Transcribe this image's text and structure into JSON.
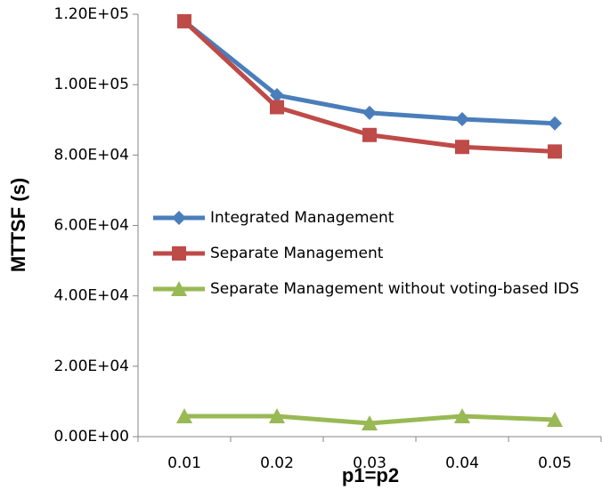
{
  "chart_data": {
    "type": "line",
    "x_label": "p1=p2",
    "y_label": "MTTSF (s)",
    "categories": [
      "0.01",
      "0.02",
      "0.03",
      "0.04",
      "0.05"
    ],
    "series": [
      {
        "name": "Integrated Management",
        "color": "#4a7ebb",
        "marker": "diamond",
        "values": [
          118000,
          97000,
          92000,
          90200,
          89000
        ]
      },
      {
        "name": "Separate Management",
        "color": "#be4b48",
        "marker": "square",
        "values": [
          118000,
          93600,
          85700,
          82300,
          81000
        ]
      },
      {
        "name": "Separate Management without voting-based IDS",
        "color": "#98b954",
        "marker": "triangle",
        "values": [
          5800,
          5800,
          3800,
          5800,
          4800
        ]
      }
    ],
    "ylim": [
      0,
      120000
    ],
    "yticks": [
      {
        "value": 0,
        "label": "0.00E+00"
      },
      {
        "value": 20000,
        "label": "2.00E+04"
      },
      {
        "value": 40000,
        "label": "4.00E+04"
      },
      {
        "value": 60000,
        "label": "6.00E+04"
      },
      {
        "value": 80000,
        "label": "8.00E+04"
      },
      {
        "value": 100000,
        "label": "1.00E+05"
      },
      {
        "value": 120000,
        "label": "1.20E+05"
      }
    ],
    "grid": false,
    "legend": "center-left"
  }
}
